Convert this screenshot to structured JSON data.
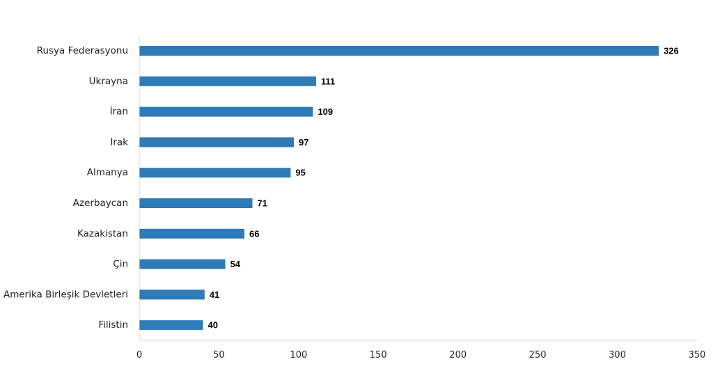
{
  "chart_data": {
    "type": "bar",
    "orientation": "horizontal",
    "categories": [
      "Rusya Federasyonu",
      "Ukrayna",
      "İran",
      "Irak",
      "Almanya",
      "Azerbaycan",
      "Kazakistan",
      "Çin",
      "Amerika Birleşik Devletleri",
      "Filistin"
    ],
    "values": [
      326,
      111,
      109,
      97,
      95,
      71,
      66,
      54,
      41,
      40
    ],
    "data_labels": [
      "326",
      "111",
      "109",
      "97",
      "95",
      "71",
      "66",
      "54",
      "41",
      "40"
    ],
    "xlim": [
      0,
      350
    ],
    "x_ticks": [
      0,
      50,
      100,
      150,
      200,
      250,
      300,
      350
    ],
    "x_tick_labels": [
      "0",
      "50",
      "100",
      "150",
      "200",
      "250",
      "300",
      "350"
    ],
    "grid": false,
    "legend": "none",
    "bar_color": "#2e7bb8",
    "axis_color": "#d9d9d9"
  }
}
